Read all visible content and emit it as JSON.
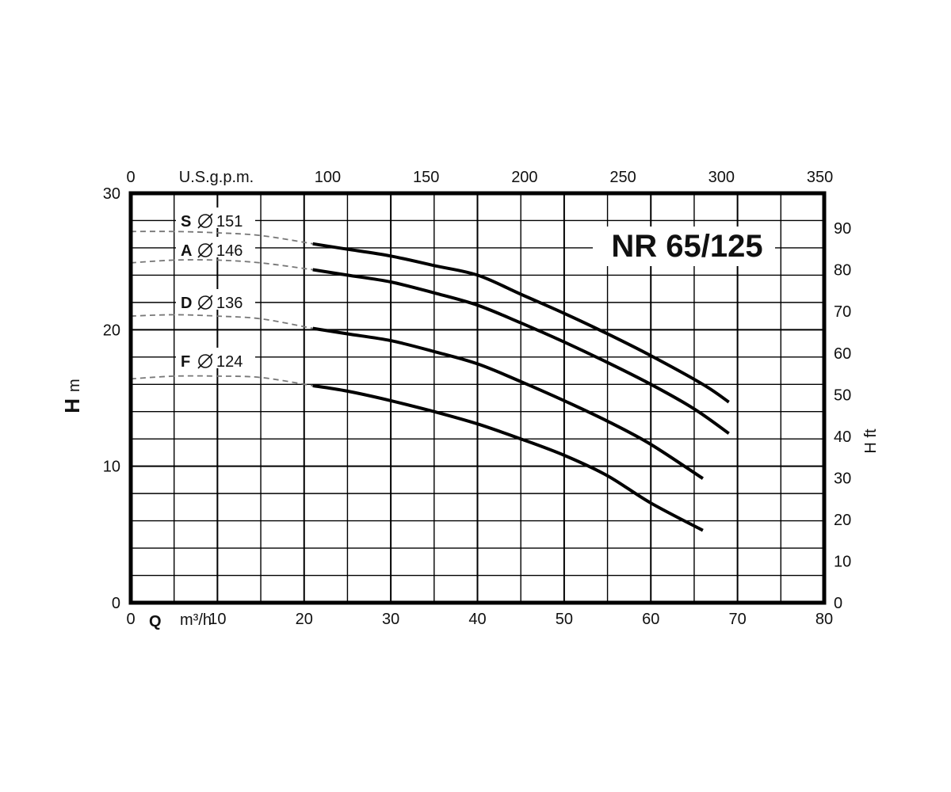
{
  "chart_data": {
    "type": "line",
    "title": "NR 65/125",
    "x": {
      "unit_symbol": "Q",
      "unit": "m³/h",
      "range": [
        0,
        80
      ],
      "ticks": [
        0,
        10,
        20,
        30,
        40,
        50,
        60,
        70,
        80
      ]
    },
    "x_secondary": {
      "unit": "U.S.g.p.m.",
      "range": [
        0,
        352.2
      ],
      "ticks": [
        0,
        100,
        150,
        200,
        250,
        300,
        350
      ]
    },
    "y": {
      "symbol": "H",
      "unit": "m",
      "range": [
        0,
        30
      ],
      "ticks": [
        0,
        10,
        20,
        30
      ]
    },
    "y_secondary": {
      "label": "H ft",
      "range": [
        0,
        98.4
      ],
      "ticks": [
        0,
        10,
        20,
        30,
        40,
        50,
        60,
        70,
        80,
        90
      ]
    },
    "grid": true,
    "series": [
      {
        "name": "S",
        "diameter": "151",
        "dashed": [
          [
            0,
            27.2
          ],
          [
            5,
            27.2
          ],
          [
            10,
            27.1
          ],
          [
            15,
            26.9
          ],
          [
            21,
            26.3
          ]
        ],
        "solid": [
          [
            21,
            26.3
          ],
          [
            25,
            25.9
          ],
          [
            30,
            25.4
          ],
          [
            35,
            24.7
          ],
          [
            40,
            24.0
          ],
          [
            45,
            22.6
          ],
          [
            50,
            21.2
          ],
          [
            55,
            19.7
          ],
          [
            60,
            18.1
          ],
          [
            66,
            16.0
          ],
          [
            69,
            14.7
          ]
        ]
      },
      {
        "name": "A",
        "diameter": "146",
        "dashed": [
          [
            0,
            24.9
          ],
          [
            5,
            25.1
          ],
          [
            10,
            25.1
          ],
          [
            15,
            24.9
          ],
          [
            21,
            24.4
          ]
        ],
        "solid": [
          [
            21,
            24.4
          ],
          [
            25,
            24.0
          ],
          [
            30,
            23.5
          ],
          [
            35,
            22.7
          ],
          [
            40,
            21.8
          ],
          [
            45,
            20.5
          ],
          [
            50,
            19.1
          ],
          [
            55,
            17.6
          ],
          [
            60,
            16.0
          ],
          [
            65,
            14.2
          ],
          [
            69,
            12.4
          ]
        ]
      },
      {
        "name": "D",
        "diameter": "136",
        "dashed": [
          [
            0,
            21.0
          ],
          [
            5,
            21.1
          ],
          [
            10,
            21.0
          ],
          [
            15,
            20.8
          ],
          [
            21,
            20.1
          ]
        ],
        "solid": [
          [
            21,
            20.1
          ],
          [
            25,
            19.7
          ],
          [
            30,
            19.2
          ],
          [
            35,
            18.4
          ],
          [
            40,
            17.5
          ],
          [
            45,
            16.2
          ],
          [
            50,
            14.8
          ],
          [
            55,
            13.3
          ],
          [
            60,
            11.6
          ],
          [
            66,
            9.1
          ]
        ]
      },
      {
        "name": "F",
        "diameter": "124",
        "dashed": [
          [
            0,
            16.4
          ],
          [
            5,
            16.6
          ],
          [
            10,
            16.6
          ],
          [
            15,
            16.5
          ],
          [
            21,
            15.9
          ]
        ],
        "solid": [
          [
            21,
            15.9
          ],
          [
            25,
            15.5
          ],
          [
            30,
            14.8
          ],
          [
            35,
            14.0
          ],
          [
            40,
            13.1
          ],
          [
            45,
            12.0
          ],
          [
            50,
            10.8
          ],
          [
            55,
            9.3
          ],
          [
            60,
            7.3
          ],
          [
            66,
            5.3
          ]
        ]
      }
    ]
  }
}
